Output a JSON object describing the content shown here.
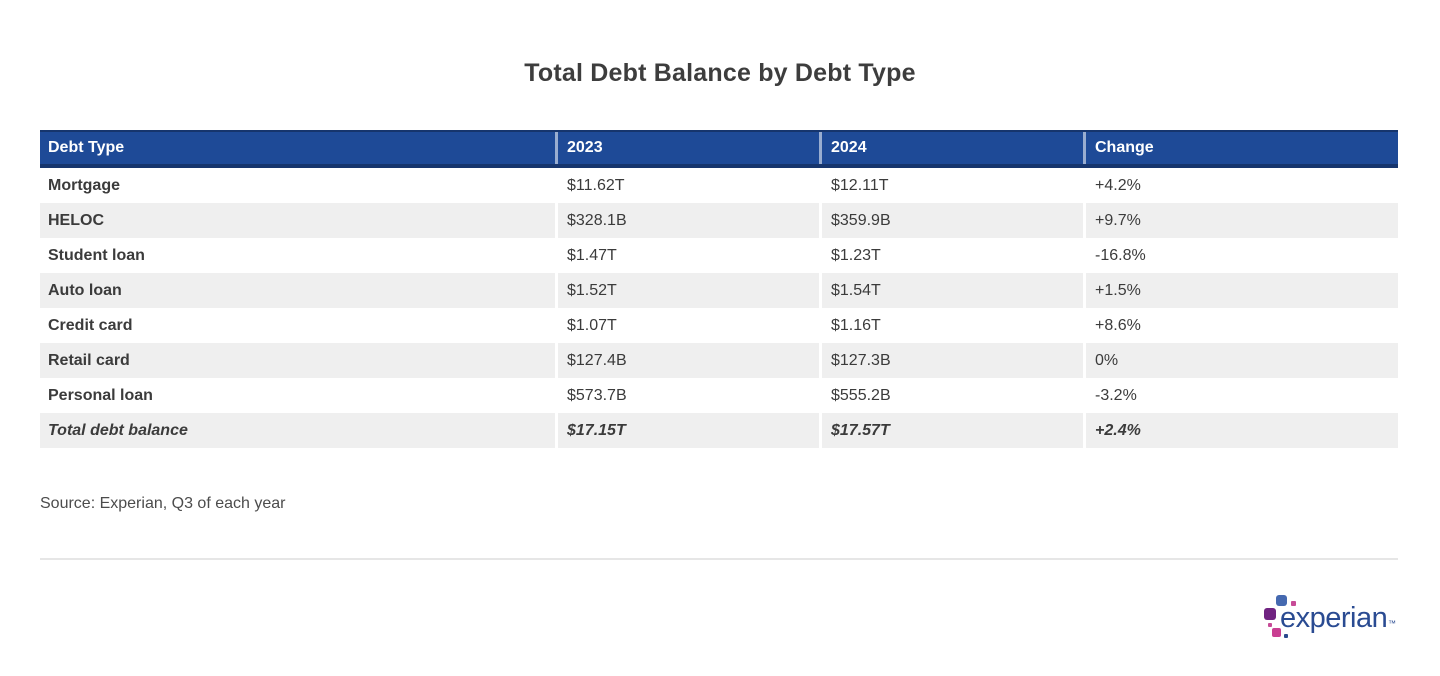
{
  "title": "Total Debt Balance by Debt Type",
  "source": "Source: Experian, Q3 of each year",
  "logo": {
    "wordmark": "experian",
    "trademark": "™"
  },
  "table": {
    "headers": {
      "debt_type": "Debt Type",
      "y2023": "2023",
      "y2024": "2024",
      "change": "Change"
    },
    "rows": [
      {
        "label": "Mortgage",
        "y2023": "$11.62T",
        "y2024": "$12.11T",
        "change": "+4.2%"
      },
      {
        "label": "HELOC",
        "y2023": "$328.1B",
        "y2024": "$359.9B",
        "change": "+9.7%"
      },
      {
        "label": "Student loan",
        "y2023": "$1.47T",
        "y2024": "$1.23T",
        "change": "-16.8%"
      },
      {
        "label": "Auto loan",
        "y2023": "$1.52T",
        "y2024": "$1.54T",
        "change": "+1.5%"
      },
      {
        "label": "Credit card",
        "y2023": "$1.07T",
        "y2024": "$1.16T",
        "change": "+8.6%"
      },
      {
        "label": "Retail card",
        "y2023": "$127.4B",
        "y2024": "$127.3B",
        "change": "0%"
      },
      {
        "label": "Personal loan",
        "y2023": "$573.7B",
        "y2024": "$555.2B",
        "change": "-3.2%"
      },
      {
        "label": "Total debt balance",
        "y2023": "$17.15T",
        "y2024": "$17.57T",
        "change": "+2.4%"
      }
    ]
  },
  "chart_data": {
    "type": "table",
    "title": "Total Debt Balance by Debt Type",
    "columns": [
      "Debt Type",
      "2023",
      "2024",
      "Change"
    ],
    "rows": [
      [
        "Mortgage",
        "$11.62T",
        "$12.11T",
        "+4.2%"
      ],
      [
        "HELOC",
        "$328.1B",
        "$359.9B",
        "+9.7%"
      ],
      [
        "Student loan",
        "$1.47T",
        "$1.23T",
        "-16.8%"
      ],
      [
        "Auto loan",
        "$1.52T",
        "$1.54T",
        "+1.5%"
      ],
      [
        "Credit card",
        "$1.07T",
        "$1.16T",
        "+8.6%"
      ],
      [
        "Retail card",
        "$127.4B",
        "$127.3B",
        "0%"
      ],
      [
        "Personal loan",
        "$573.7B",
        "$555.2B",
        "-3.2%"
      ],
      [
        "Total debt balance",
        "$17.15T",
        "$17.57T",
        "+2.4%"
      ]
    ],
    "source_note": "Source: Experian, Q3 of each year",
    "values_2023_trillions": [
      11.62,
      0.3281,
      1.47,
      1.52,
      1.07,
      0.1274,
      0.5737,
      17.15
    ],
    "values_2024_trillions": [
      12.11,
      0.3599,
      1.23,
      1.54,
      1.16,
      0.1273,
      0.5552,
      17.57
    ],
    "change_percent": [
      4.2,
      9.7,
      -16.8,
      1.5,
      8.6,
      0,
      -3.2,
      2.4
    ]
  },
  "colors": {
    "header_bg": "#1e4a97",
    "header_border": "#16356d",
    "row_alt_bg": "#efefef",
    "header_text": "#ffffff",
    "body_text": "#3b3b3b",
    "source_text": "#4c4c4c",
    "divider": "#e6e6e6",
    "logo_blue": "#4569b0",
    "logo_purple": "#702381",
    "logo_magenta": "#c93f92",
    "logo_wordmark_blue": "#2a4b92"
  }
}
